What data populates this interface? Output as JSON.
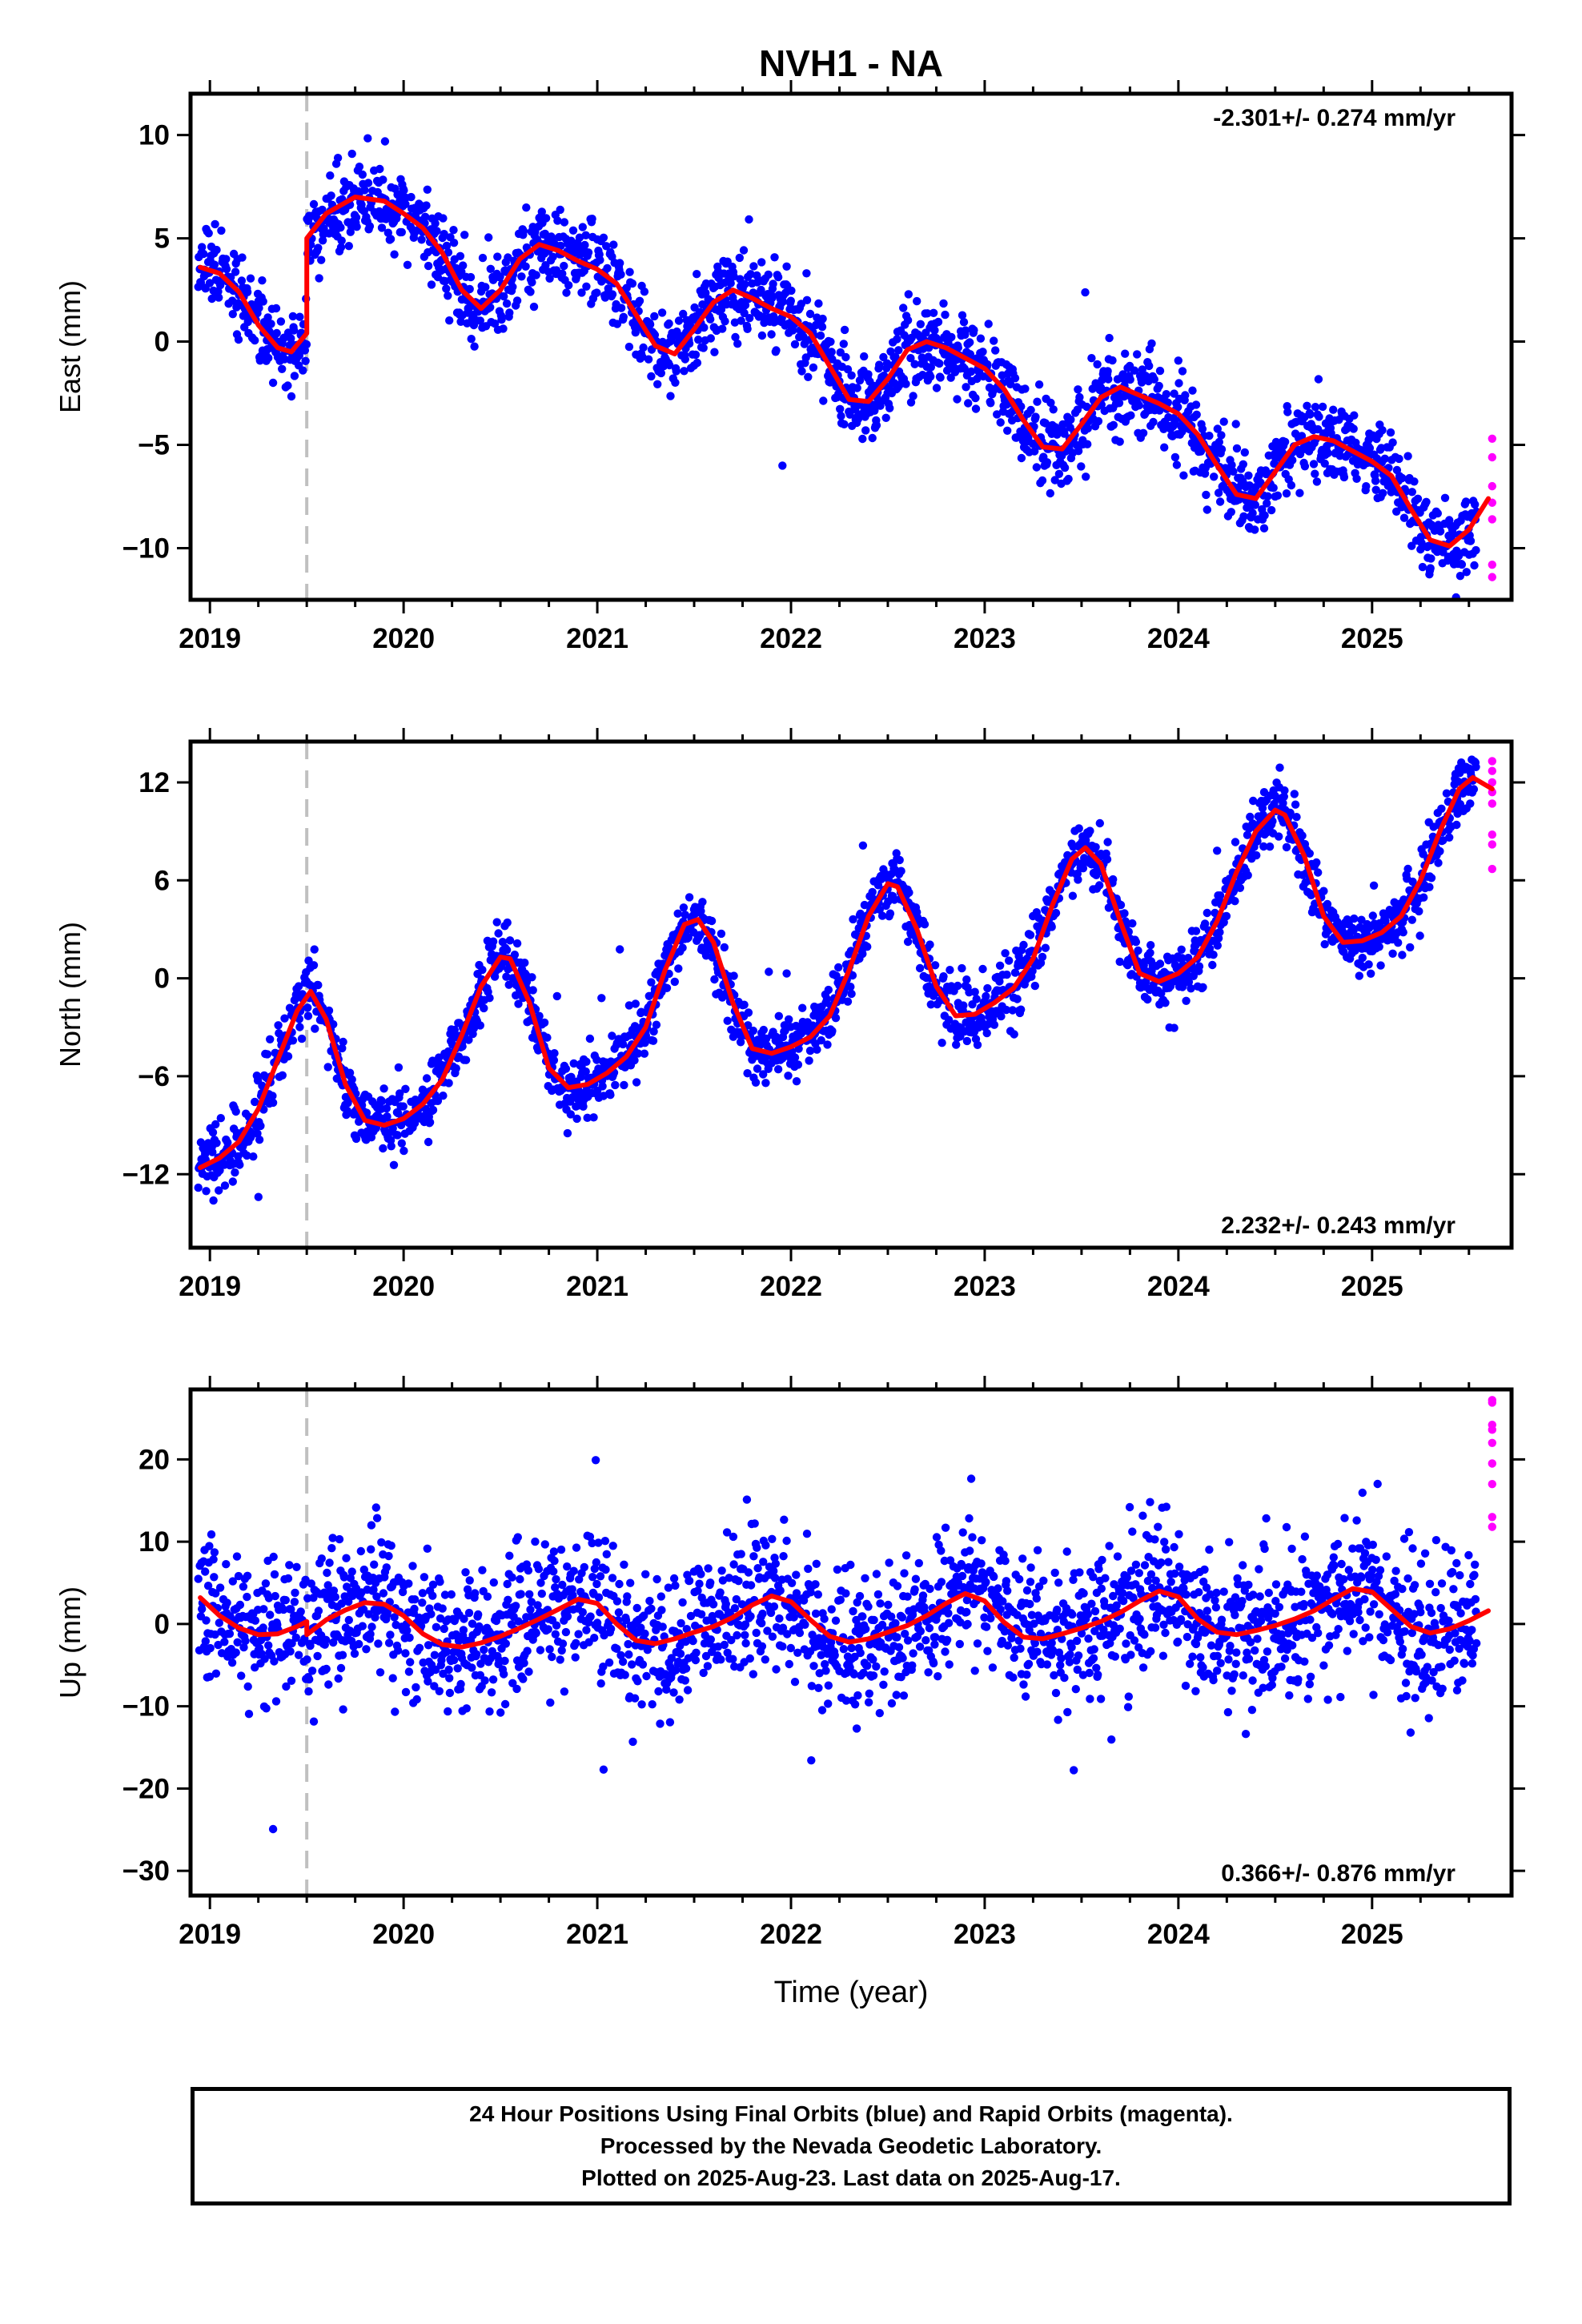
{
  "title": "NVH1 - NA",
  "xlabel": "Time (year)",
  "colors": {
    "final": "#0000ff",
    "rapid": "#ff00ff",
    "model": "#ff0000",
    "event_line": "#c0c0c0"
  },
  "notes": [
    "24 Hour Positions Using Final Orbits (blue) and Rapid Orbits (magenta).",
    "Processed by the Nevada Geodetic Laboratory.",
    "Plotted on 2025-Aug-23. Last data on 2025-Aug-17."
  ],
  "chart_data": [
    {
      "type": "scatter",
      "ylabel": "East (mm)",
      "rate_label": "-2.301+/- 0.274 mm/yr",
      "rate_position": "top-right",
      "xlim": [
        2018.9,
        2025.72
      ],
      "ylim": [
        -12.5,
        12
      ],
      "xticks": [
        2019,
        2020,
        2021,
        2022,
        2023,
        2024,
        2025
      ],
      "xtick_labels": [
        "2019",
        "2020",
        "2021",
        "2022",
        "2023",
        "2024",
        "2025"
      ],
      "yticks": [
        10,
        5,
        0,
        -5,
        -10
      ],
      "ytick_labels": [
        "10",
        "5",
        "0",
        "−5",
        "−10"
      ],
      "event_lines": [
        2019.5
      ],
      "data_start": 2018.94,
      "data_end": 2025.54,
      "rapid_x": 2025.62,
      "rapid_values": [
        -4.7,
        -5.6,
        -7.0,
        -7.8,
        -8.6,
        -10.8,
        -11.4
      ],
      "noise_sd": 1.0,
      "seed": 11,
      "model": [
        [
          2018.95,
          3.6
        ],
        [
          2019.05,
          3.3
        ],
        [
          2019.15,
          2.4
        ],
        [
          2019.25,
          0.8
        ],
        [
          2019.35,
          -0.3
        ],
        [
          2019.42,
          -0.5
        ],
        [
          2019.5,
          0.4
        ],
        [
          2019.5,
          5.0
        ],
        [
          2019.6,
          6.2
        ],
        [
          2019.75,
          7.0
        ],
        [
          2019.9,
          6.8
        ],
        [
          2020.0,
          6.2
        ],
        [
          2020.1,
          5.5
        ],
        [
          2020.2,
          4.3
        ],
        [
          2020.3,
          2.5
        ],
        [
          2020.4,
          1.6
        ],
        [
          2020.5,
          2.5
        ],
        [
          2020.6,
          4.0
        ],
        [
          2020.7,
          4.7
        ],
        [
          2020.8,
          4.4
        ],
        [
          2020.9,
          3.9
        ],
        [
          2021.0,
          3.5
        ],
        [
          2021.1,
          2.8
        ],
        [
          2021.2,
          1.3
        ],
        [
          2021.3,
          -0.2
        ],
        [
          2021.4,
          -0.6
        ],
        [
          2021.5,
          0.6
        ],
        [
          2021.6,
          1.9
        ],
        [
          2021.7,
          2.5
        ],
        [
          2021.8,
          2.1
        ],
        [
          2021.9,
          1.6
        ],
        [
          2022.0,
          1.2
        ],
        [
          2022.1,
          0.4
        ],
        [
          2022.2,
          -1.2
        ],
        [
          2022.3,
          -2.8
        ],
        [
          2022.4,
          -2.9
        ],
        [
          2022.5,
          -1.8
        ],
        [
          2022.6,
          -0.4
        ],
        [
          2022.7,
          0.0
        ],
        [
          2022.8,
          -0.3
        ],
        [
          2022.9,
          -0.8
        ],
        [
          2023.0,
          -1.3
        ],
        [
          2023.1,
          -2.3
        ],
        [
          2023.2,
          -3.8
        ],
        [
          2023.3,
          -5.1
        ],
        [
          2023.4,
          -5.2
        ],
        [
          2023.5,
          -4.0
        ],
        [
          2023.6,
          -2.7
        ],
        [
          2023.7,
          -2.2
        ],
        [
          2023.8,
          -2.6
        ],
        [
          2023.9,
          -3.0
        ],
        [
          2024.0,
          -3.5
        ],
        [
          2024.1,
          -4.5
        ],
        [
          2024.2,
          -6.0
        ],
        [
          2024.3,
          -7.4
        ],
        [
          2024.4,
          -7.6
        ],
        [
          2024.5,
          -6.3
        ],
        [
          2024.6,
          -5.0
        ],
        [
          2024.7,
          -4.6
        ],
        [
          2024.8,
          -4.8
        ],
        [
          2024.9,
          -5.3
        ],
        [
          2025.0,
          -5.8
        ],
        [
          2025.1,
          -6.5
        ],
        [
          2025.2,
          -8.1
        ],
        [
          2025.3,
          -9.6
        ],
        [
          2025.4,
          -9.9
        ],
        [
          2025.5,
          -9.1
        ],
        [
          2025.6,
          -7.6
        ]
      ]
    },
    {
      "type": "scatter",
      "ylabel": "North (mm)",
      "rate_label": "2.232+/- 0.243 mm/yr",
      "rate_position": "bottom-right",
      "xlim": [
        2018.9,
        2025.72
      ],
      "ylim": [
        -16.5,
        14.5
      ],
      "xticks": [
        2019,
        2020,
        2021,
        2022,
        2023,
        2024,
        2025
      ],
      "xtick_labels": [
        "2019",
        "2020",
        "2021",
        "2022",
        "2023",
        "2024",
        "2025"
      ],
      "yticks": [
        12,
        6,
        0,
        -6,
        -12
      ],
      "ytick_labels": [
        "12",
        "6",
        "0",
        "−6",
        "−12"
      ],
      "event_lines": [
        2019.5
      ],
      "data_start": 2018.94,
      "data_end": 2025.54,
      "rapid_x": 2025.62,
      "rapid_values": [
        13.3,
        12.7,
        12.0,
        11.4,
        10.7,
        8.8,
        8.2,
        6.7
      ],
      "noise_sd": 0.95,
      "seed": 23,
      "model": [
        [
          2018.95,
          -11.6
        ],
        [
          2019.05,
          -11.0
        ],
        [
          2019.15,
          -10.0
        ],
        [
          2019.25,
          -8.0
        ],
        [
          2019.35,
          -5.0
        ],
        [
          2019.45,
          -2.0
        ],
        [
          2019.52,
          -0.8
        ],
        [
          2019.6,
          -2.5
        ],
        [
          2019.7,
          -6.5
        ],
        [
          2019.8,
          -8.7
        ],
        [
          2019.9,
          -9.0
        ],
        [
          2020.0,
          -8.6
        ],
        [
          2020.1,
          -7.7
        ],
        [
          2020.2,
          -6.2
        ],
        [
          2020.3,
          -3.5
        ],
        [
          2020.4,
          -0.5
        ],
        [
          2020.5,
          1.3
        ],
        [
          2020.55,
          1.2
        ],
        [
          2020.65,
          -1.5
        ],
        [
          2020.75,
          -5.5
        ],
        [
          2020.85,
          -6.7
        ],
        [
          2020.95,
          -6.5
        ],
        [
          2021.05,
          -5.8
        ],
        [
          2021.15,
          -4.8
        ],
        [
          2021.25,
          -3.0
        ],
        [
          2021.35,
          0.5
        ],
        [
          2021.45,
          3.3
        ],
        [
          2021.52,
          3.6
        ],
        [
          2021.6,
          2.2
        ],
        [
          2021.7,
          -1.5
        ],
        [
          2021.8,
          -4.3
        ],
        [
          2021.9,
          -4.6
        ],
        [
          2022.0,
          -4.2
        ],
        [
          2022.1,
          -3.6
        ],
        [
          2022.2,
          -2.3
        ],
        [
          2022.3,
          0.5
        ],
        [
          2022.4,
          3.8
        ],
        [
          2022.5,
          5.8
        ],
        [
          2022.55,
          5.6
        ],
        [
          2022.65,
          3.0
        ],
        [
          2022.75,
          -0.5
        ],
        [
          2022.85,
          -2.3
        ],
        [
          2022.95,
          -2.2
        ],
        [
          2023.05,
          -1.5
        ],
        [
          2023.15,
          -0.6
        ],
        [
          2023.25,
          1.2
        ],
        [
          2023.35,
          4.5
        ],
        [
          2023.45,
          7.3
        ],
        [
          2023.52,
          8.0
        ],
        [
          2023.6,
          7.0
        ],
        [
          2023.7,
          3.5
        ],
        [
          2023.8,
          0.3
        ],
        [
          2023.9,
          -0.2
        ],
        [
          2024.0,
          0.3
        ],
        [
          2024.1,
          1.3
        ],
        [
          2024.2,
          3.5
        ],
        [
          2024.3,
          6.5
        ],
        [
          2024.4,
          9.0
        ],
        [
          2024.5,
          10.3
        ],
        [
          2024.55,
          10.0
        ],
        [
          2024.65,
          7.5
        ],
        [
          2024.75,
          3.8
        ],
        [
          2024.85,
          2.2
        ],
        [
          2024.95,
          2.3
        ],
        [
          2025.05,
          2.8
        ],
        [
          2025.15,
          3.8
        ],
        [
          2025.25,
          6.0
        ],
        [
          2025.35,
          9.0
        ],
        [
          2025.45,
          11.6
        ],
        [
          2025.52,
          12.3
        ],
        [
          2025.62,
          11.6
        ]
      ]
    },
    {
      "type": "scatter",
      "ylabel": "Up (mm)",
      "rate_label": "0.366+/- 0.876 mm/yr",
      "rate_position": "bottom-right",
      "xlim": [
        2018.9,
        2025.72
      ],
      "ylim": [
        -33,
        28.5
      ],
      "xticks": [
        2019,
        2020,
        2021,
        2022,
        2023,
        2024,
        2025
      ],
      "xtick_labels": [
        "2019",
        "2020",
        "2021",
        "2022",
        "2023",
        "2024",
        "2025"
      ],
      "yticks": [
        20,
        10,
        0,
        -10,
        -20,
        -30
      ],
      "ytick_labels": [
        "20",
        "10",
        "0",
        "−10",
        "−20",
        "−30"
      ],
      "event_lines": [
        2019.5
      ],
      "data_start": 2018.94,
      "data_end": 2025.54,
      "rapid_x": 2025.62,
      "rapid_values": [
        27.2,
        26.9,
        24.2,
        23.6,
        22.0,
        19.5,
        17.0,
        13.0,
        11.8
      ],
      "noise_sd": 4.2,
      "seed": 37,
      "model": [
        [
          2018.95,
          3.2
        ],
        [
          2019.05,
          1.0
        ],
        [
          2019.15,
          -0.5
        ],
        [
          2019.25,
          -1.3
        ],
        [
          2019.35,
          -1.2
        ],
        [
          2019.45,
          -0.3
        ],
        [
          2019.5,
          0.3
        ],
        [
          2019.5,
          -1.3
        ],
        [
          2019.6,
          0.5
        ],
        [
          2019.7,
          1.7
        ],
        [
          2019.8,
          2.6
        ],
        [
          2019.9,
          2.4
        ],
        [
          2020.0,
          1.0
        ],
        [
          2020.1,
          -1.2
        ],
        [
          2020.2,
          -2.5
        ],
        [
          2020.3,
          -2.8
        ],
        [
          2020.4,
          -2.3
        ],
        [
          2020.5,
          -1.5
        ],
        [
          2020.6,
          -0.5
        ],
        [
          2020.7,
          0.6
        ],
        [
          2020.8,
          1.8
        ],
        [
          2020.9,
          3.0
        ],
        [
          2021.0,
          2.5
        ],
        [
          2021.1,
          0.0
        ],
        [
          2021.2,
          -2.0
        ],
        [
          2021.3,
          -2.4
        ],
        [
          2021.4,
          -1.8
        ],
        [
          2021.5,
          -1.0
        ],
        [
          2021.6,
          -0.3
        ],
        [
          2021.7,
          0.8
        ],
        [
          2021.8,
          2.3
        ],
        [
          2021.9,
          3.4
        ],
        [
          2022.0,
          2.7
        ],
        [
          2022.1,
          0.5
        ],
        [
          2022.2,
          -1.5
        ],
        [
          2022.3,
          -2.2
        ],
        [
          2022.4,
          -1.8
        ],
        [
          2022.5,
          -1.0
        ],
        [
          2022.6,
          -0.2
        ],
        [
          2022.7,
          1.0
        ],
        [
          2022.8,
          2.5
        ],
        [
          2022.9,
          3.7
        ],
        [
          2023.0,
          2.8
        ],
        [
          2023.1,
          0.2
        ],
        [
          2023.2,
          -1.6
        ],
        [
          2023.3,
          -1.8
        ],
        [
          2023.4,
          -1.2
        ],
        [
          2023.5,
          -0.5
        ],
        [
          2023.6,
          0.3
        ],
        [
          2023.7,
          1.4
        ],
        [
          2023.8,
          2.8
        ],
        [
          2023.9,
          4.0
        ],
        [
          2024.0,
          3.3
        ],
        [
          2024.1,
          0.6
        ],
        [
          2024.2,
          -1.0
        ],
        [
          2024.3,
          -1.3
        ],
        [
          2024.4,
          -0.8
        ],
        [
          2024.5,
          -0.2
        ],
        [
          2024.6,
          0.6
        ],
        [
          2024.7,
          1.6
        ],
        [
          2024.8,
          3.0
        ],
        [
          2024.9,
          4.3
        ],
        [
          2025.0,
          3.9
        ],
        [
          2025.1,
          1.8
        ],
        [
          2025.2,
          -0.3
        ],
        [
          2025.3,
          -1.1
        ],
        [
          2025.4,
          -0.6
        ],
        [
          2025.5,
          0.4
        ],
        [
          2025.6,
          1.6
        ]
      ]
    }
  ]
}
